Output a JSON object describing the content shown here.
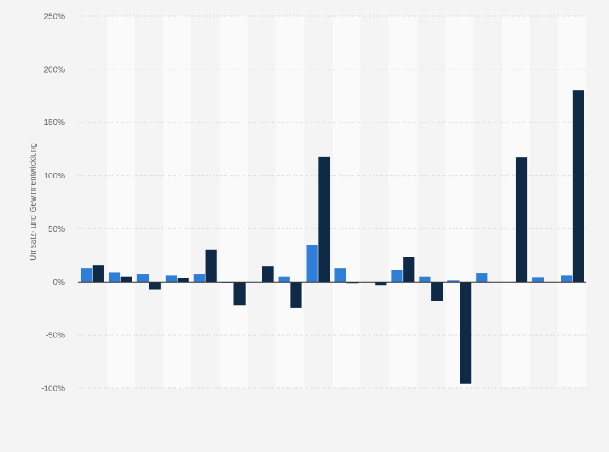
{
  "chart_data": {
    "type": "bar",
    "title": "",
    "xlabel": "",
    "ylabel": "Umsatz- und Gewinnentwicklung",
    "ylim": [
      -100,
      250
    ],
    "yticks": [
      250,
      200,
      150,
      100,
      50,
      0,
      -50,
      -100
    ],
    "ytick_labels": [
      "250%",
      "200%",
      "150%",
      "100%",
      "50%",
      "0%",
      "-50%",
      "-100%"
    ],
    "grid": true,
    "legend": "none",
    "categories": [
      "",
      "",
      "",
      "",
      "",
      "",
      "",
      "",
      "",
      "",
      "",
      "",
      "",
      "",
      "",
      "",
      "",
      ""
    ],
    "series": [
      {
        "color": "#2f7ed8",
        "values": [
          13,
          9,
          7,
          6,
          7,
          -1,
          0,
          5,
          35,
          13,
          0,
          11,
          5,
          1.5,
          8.5,
          0,
          4.5,
          6
        ]
      },
      {
        "color": "#0e2a47",
        "values": [
          16,
          5,
          -7,
          4,
          30,
          -22,
          14.5,
          -24,
          118,
          -1.5,
          -3,
          23,
          -18,
          -96,
          0,
          117,
          0,
          180
        ]
      }
    ]
  }
}
